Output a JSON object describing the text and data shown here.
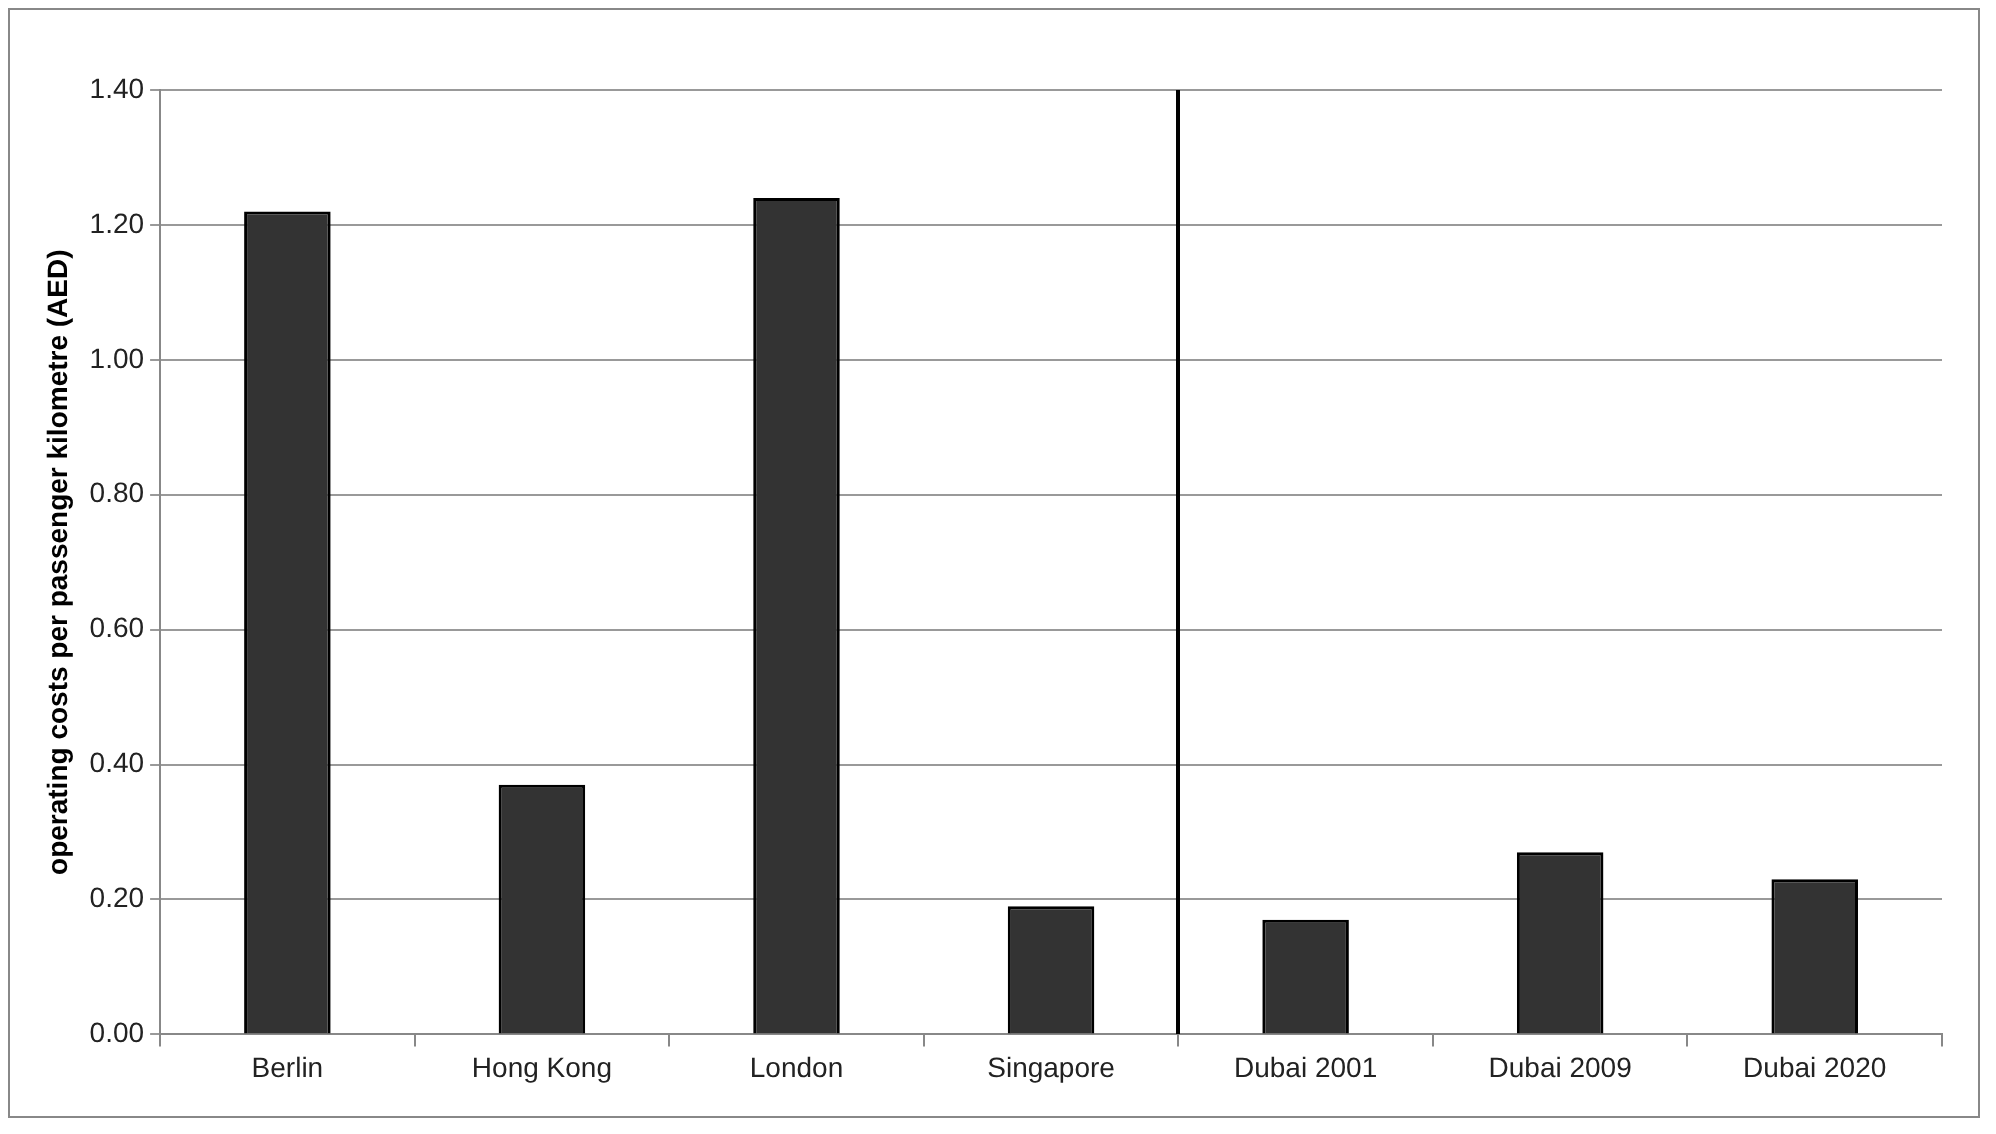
{
  "chart_data": {
    "type": "bar",
    "ylabel": "operating costs per passenger kilometre (AED)",
    "categories": [
      "Berlin",
      "Hong Kong",
      "London",
      "Singapore",
      "Dubai 2001",
      "Dubai 2009",
      "Dubai 2020"
    ],
    "values": [
      1.22,
      0.37,
      1.24,
      0.19,
      0.17,
      0.27,
      0.23
    ],
    "color": "#333333",
    "ylim": [
      0,
      1.4
    ],
    "yticks": [
      {
        "value": 0,
        "label": "0.00"
      },
      {
        "value": 0.2,
        "label": "0.20"
      },
      {
        "value": 0.4,
        "label": "0.40"
      },
      {
        "value": 0.6,
        "label": "0.60"
      },
      {
        "value": 0.8,
        "label": "0.80"
      },
      {
        "value": 1,
        "label": "1.00"
      },
      {
        "value": 1.2,
        "label": "1.20"
      },
      {
        "value": 1.4,
        "label": "1.40"
      }
    ],
    "grid": "y",
    "legend": false
  }
}
